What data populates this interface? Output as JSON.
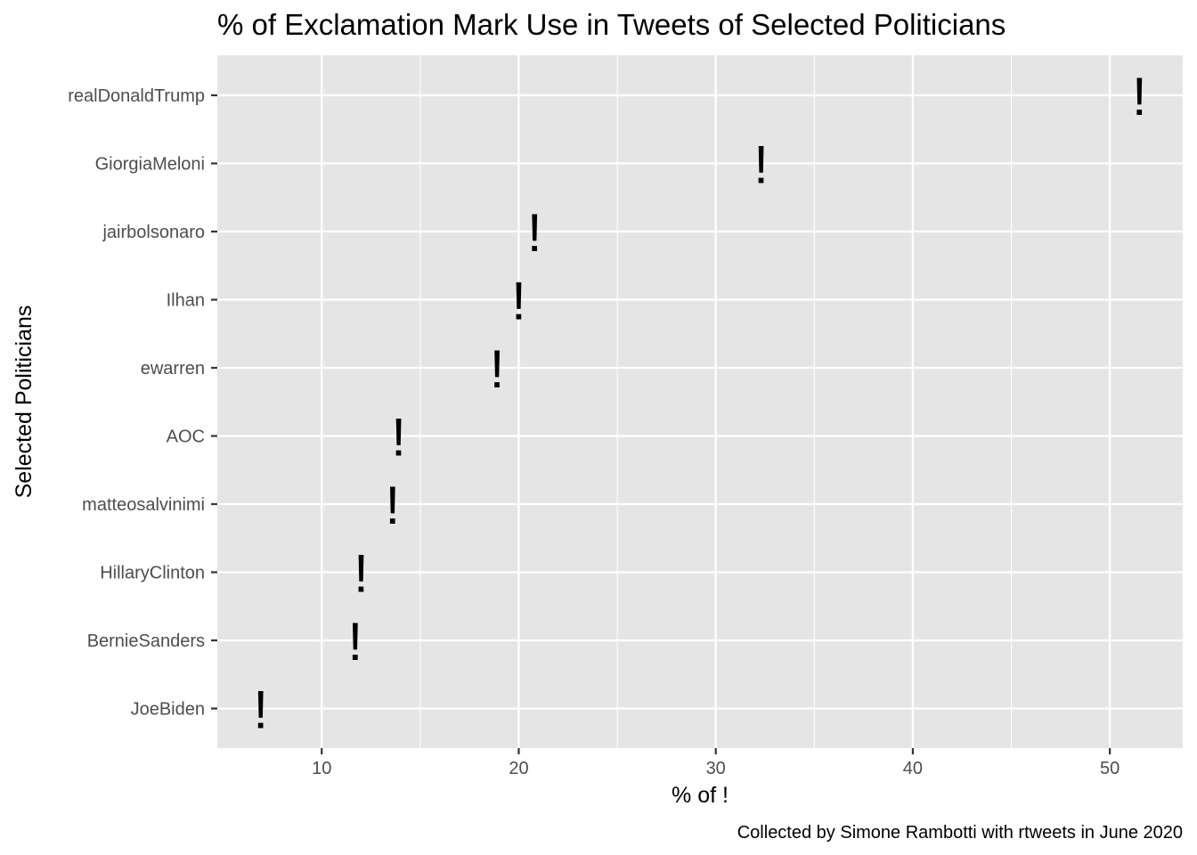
{
  "chart_data": {
    "type": "scatter",
    "title": "% of Exclamation Mark Use in Tweets of Selected Politicians",
    "xlabel": "% of !",
    "ylabel": "Selected Politicians",
    "caption": "Collected by Simone Rambotti with rtweets in June 2020",
    "point_symbol": "!",
    "xlim": [
      4.7,
      53.7
    ],
    "x_ticks": [
      10,
      20,
      30,
      40,
      50
    ],
    "x_minor_ticks": [
      15,
      25,
      35,
      45
    ],
    "grid": true,
    "panel_background": "#e5e5e5",
    "grid_color": "#ffffff",
    "categories": [
      "realDonaldTrump",
      "GiorgiaMeloni",
      "jairbolsonaro",
      "Ilhan",
      "ewarren",
      "AOC",
      "matteosalvinimi",
      "HillaryClinton",
      "BernieSanders",
      "JoeBiden"
    ],
    "values": [
      51.5,
      32.3,
      20.8,
      20.0,
      18.9,
      13.9,
      13.6,
      12.0,
      11.7,
      6.9
    ]
  }
}
